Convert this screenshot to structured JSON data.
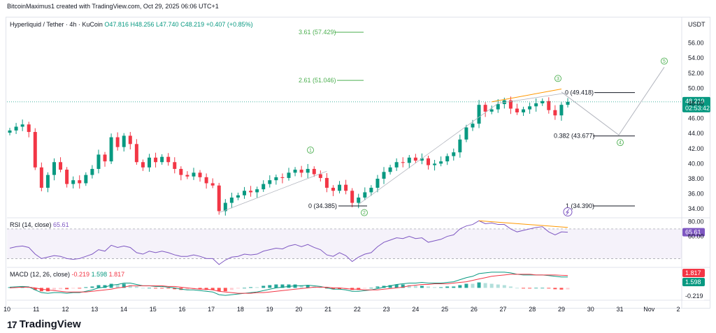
{
  "header": {
    "credit": "BitcoinMaximus1 created with TradingView.com, Oct 29, 2025 06:06 UTC+1",
    "symbol": "Hyperliquid / Tether · 4h · KuCoin",
    "open": "O47.816",
    "high": "H48.256",
    "low": "L47.740",
    "close": "C48.219",
    "change": "+0.407 (+0.85%)",
    "currency": "USDT"
  },
  "price_badge": {
    "value": "48.219",
    "countdown": "02:53:42",
    "color": "#089981"
  },
  "rsi_legend": {
    "label": "RSI (14, close)",
    "value": "65.61"
  },
  "rsi_badge": "65.61",
  "macd_legend": {
    "label": "MACD (12, 26, close)",
    "hist": "-0.219",
    "macd": "1.598",
    "signal": "1.817"
  },
  "macd_badges": {
    "signal": "1.817",
    "macd": "1.598",
    "hist": "-0.219"
  },
  "logo": {
    "text": "TradingView"
  },
  "colors": {
    "up": "#089981",
    "down": "#f23645",
    "rsi": "#7e57c2",
    "macd": "#089981",
    "signal": "#f23645",
    "proj": "#b2b5be",
    "fib": "#4caf50",
    "trend": "#ff9800"
  },
  "chart_data": {
    "type": "candlestick",
    "price_axis": {
      "ticks": [
        34.0,
        36.0,
        38.0,
        40.0,
        42.0,
        44.0,
        46.0,
        48.0,
        50.0,
        52.0,
        54.0,
        56.0
      ],
      "range": [
        33.0,
        58.0
      ]
    },
    "x_axis": {
      "labels": [
        "10",
        "11",
        "12",
        "13",
        "14",
        "15",
        "16",
        "17",
        "18",
        "19",
        "20",
        "21",
        "22",
        "23",
        "24",
        "25",
        "26",
        "27",
        "28",
        "29",
        "30",
        "31",
        "Nov",
        "2"
      ]
    },
    "candles_close": [
      44.4,
      44.9,
      45.2,
      44.2,
      39.5,
      36.8,
      38.5,
      40.2,
      39.2,
      37.3,
      37.8,
      37.4,
      38.5,
      39.3,
      41.2,
      40.3,
      43.5,
      42.2,
      43.7,
      42.6,
      40.2,
      39.5,
      40.8,
      40.2,
      40.9,
      40.2,
      39.3,
      38.5,
      38.3,
      38.8,
      38.2,
      37.4,
      37.1,
      33.7,
      34.8,
      35.5,
      35.8,
      36.4,
      36.2,
      36.6,
      37.3,
      37.8,
      38.2,
      38.1,
      38.8,
      39.2,
      38.8,
      39.3,
      38.6,
      38.1,
      36.8,
      36.4,
      37.2,
      36.4,
      34.8,
      35.5,
      36.2,
      36.8,
      38.0,
      38.9,
      39.5,
      40.2,
      40.1,
      40.8,
      40.4,
      40.7,
      39.8,
      40.0,
      40.3,
      41.0,
      41.5,
      43.2,
      44.8,
      45.3,
      47.8,
      46.9,
      47.2,
      47.9,
      48.4,
      47.3,
      46.8,
      47.2,
      47.6,
      48.0,
      48.3,
      47.1,
      46.4,
      47.8,
      48.2
    ],
    "fib_levels": [
      {
        "label": "3.61 (57.429)",
        "value": 57.429
      },
      {
        "label": "2.61 (51.046)",
        "value": 51.046
      },
      {
        "label": "0 (49.418)",
        "value": 49.418
      },
      {
        "label": "0.382 (43.677)",
        "value": 43.677
      },
      {
        "label": "0 (34.385)",
        "value": 34.385
      },
      {
        "label": "1 (34.390)",
        "value": 34.39
      }
    ],
    "wave_labels": [
      "1",
      "2",
      "3",
      "4",
      "5"
    ],
    "rsi_axis": {
      "ticks": [
        80.0,
        60.0
      ],
      "range": [
        20,
        85
      ]
    },
    "rsi_values": [
      44,
      46,
      47,
      45,
      36,
      30,
      32,
      34,
      33,
      30,
      29,
      30,
      33,
      36,
      42,
      40,
      48,
      45,
      47,
      45,
      38,
      36,
      40,
      38,
      40,
      38,
      35,
      33,
      33,
      35,
      33,
      30,
      30,
      22,
      28,
      32,
      33,
      36,
      35,
      36,
      40,
      42,
      44,
      43,
      47,
      49,
      46,
      49,
      45,
      42,
      35,
      33,
      38,
      34,
      26,
      32,
      36,
      38,
      46,
      52,
      55,
      58,
      57,
      60,
      57,
      58,
      52,
      54,
      56,
      60,
      62,
      70,
      74,
      76,
      81,
      77,
      78,
      76,
      76,
      70,
      66,
      68,
      70,
      72,
      73,
      66,
      62,
      66,
      65.61
    ],
    "macd_values": [
      0.1,
      0.15,
      0.2,
      0.15,
      -0.3,
      -0.7,
      -0.8,
      -0.7,
      -0.7,
      -0.8,
      -0.7,
      -0.7,
      -0.5,
      -0.3,
      0.0,
      0.1,
      0.4,
      0.5,
      0.7,
      0.7,
      0.5,
      0.3,
      0.3,
      0.2,
      0.2,
      0.1,
      0.0,
      -0.2,
      -0.3,
      -0.3,
      -0.4,
      -0.5,
      -0.6,
      -1.0,
      -1.1,
      -1.0,
      -0.9,
      -0.8,
      -0.7,
      -0.6,
      -0.4,
      -0.2,
      0.0,
      0.1,
      0.2,
      0.3,
      0.3,
      0.4,
      0.3,
      0.2,
      0.0,
      -0.2,
      -0.2,
      -0.3,
      -0.5,
      -0.5,
      -0.4,
      -0.3,
      -0.1,
      0.1,
      0.3,
      0.5,
      0.6,
      0.7,
      0.7,
      0.8,
      0.7,
      0.7,
      0.7,
      0.8,
      0.9,
      1.2,
      1.5,
      1.7,
      2.1,
      2.2,
      2.3,
      2.3,
      2.3,
      2.2,
      2.0,
      1.9,
      1.9,
      1.9,
      1.9,
      1.8,
      1.7,
      1.6,
      1.598
    ],
    "signal_values": [
      0.0,
      0.05,
      0.1,
      0.1,
      0.0,
      -0.2,
      -0.3,
      -0.4,
      -0.5,
      -0.6,
      -0.6,
      -0.6,
      -0.6,
      -0.5,
      -0.4,
      -0.3,
      -0.2,
      0.0,
      0.1,
      0.3,
      0.3,
      0.3,
      0.3,
      0.3,
      0.3,
      0.2,
      0.2,
      0.1,
      0.0,
      -0.1,
      -0.2,
      -0.2,
      -0.3,
      -0.5,
      -0.6,
      -0.7,
      -0.8,
      -0.8,
      -0.8,
      -0.7,
      -0.7,
      -0.6,
      -0.5,
      -0.4,
      -0.3,
      -0.2,
      -0.1,
      0.0,
      0.1,
      0.1,
      0.1,
      0.0,
      0.0,
      -0.1,
      -0.2,
      -0.2,
      -0.3,
      -0.3,
      -0.3,
      -0.2,
      -0.1,
      0.0,
      0.1,
      0.3,
      0.4,
      0.5,
      0.5,
      0.6,
      0.6,
      0.6,
      0.7,
      0.8,
      0.9,
      1.1,
      1.3,
      1.5,
      1.7,
      1.8,
      1.9,
      2.0,
      2.0,
      2.0,
      2.0,
      1.9,
      1.9,
      1.9,
      1.9,
      1.85,
      1.817
    ]
  }
}
